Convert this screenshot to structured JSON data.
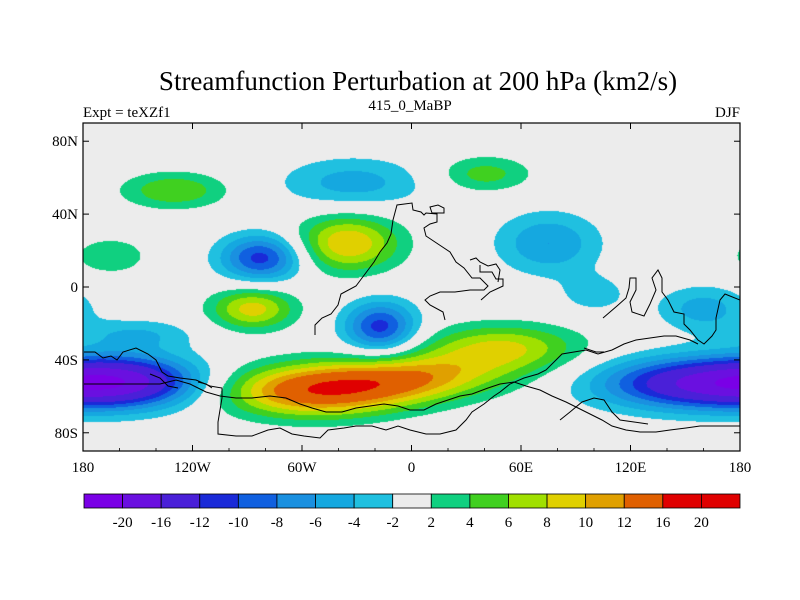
{
  "chart_data": {
    "type": "heatmap",
    "title": "Streamfunction Perturbation at 200 hPa (km2/s)",
    "left_subtitle": "Expt = teXZf1",
    "center_subtitle": "415_0_MaBP",
    "right_subtitle": "DJF",
    "xlim": [
      -180,
      180
    ],
    "ylim": [
      -90,
      90
    ],
    "x_ticks": [
      {
        "value": -180,
        "label": "180"
      },
      {
        "value": -120,
        "label": "120W"
      },
      {
        "value": -60,
        "label": "60W"
      },
      {
        "value": 0,
        "label": "0"
      },
      {
        "value": 60,
        "label": "60E"
      },
      {
        "value": 120,
        "label": "120E"
      },
      {
        "value": 180,
        "label": "180"
      }
    ],
    "y_ticks": [
      {
        "value": 80,
        "label": "80N"
      },
      {
        "value": 40,
        "label": "40N"
      },
      {
        "value": 0,
        "label": "0"
      },
      {
        "value": -40,
        "label": "40S"
      },
      {
        "value": -80,
        "label": "80S"
      }
    ],
    "levels": [
      -20,
      -16,
      -12,
      -10,
      -8,
      -6,
      -4,
      -2,
      2,
      4,
      6,
      8,
      10,
      12,
      16,
      20
    ],
    "colors": [
      "#7a00e6",
      "#6a10e0",
      "#4a20d8",
      "#1a2ad8",
      "#1060e0",
      "#1a90e0",
      "#15a8e0",
      "#20c0e0",
      "#ececec",
      "#10d080",
      "#40d020",
      "#a0e000",
      "#e0d000",
      "#e0a000",
      "#e06000",
      "#e00000",
      "#e00000"
    ],
    "colorbar_labels": [
      {
        "value": -20,
        "label": "-20"
      },
      {
        "value": -16,
        "label": "-16"
      },
      {
        "value": -12,
        "label": "-12"
      },
      {
        "value": -10,
        "label": "-10"
      },
      {
        "value": -8,
        "label": "-8"
      },
      {
        "value": -6,
        "label": "-6"
      },
      {
        "value": -4,
        "label": "-4"
      },
      {
        "value": -2,
        "label": "-2"
      },
      {
        "value": 2,
        "label": "2"
      },
      {
        "value": 4,
        "label": "4"
      },
      {
        "value": 6,
        "label": "6"
      },
      {
        "value": 8,
        "label": "8"
      },
      {
        "value": 10,
        "label": "10"
      },
      {
        "value": 12,
        "label": "12"
      },
      {
        "value": 16,
        "label": "16"
      },
      {
        "value": 20,
        "label": "20"
      }
    ],
    "field_centers": [
      {
        "lon": -55,
        "lat": -57,
        "amp": 14,
        "slon": 34,
        "slat": 10
      },
      {
        "lon": -10,
        "lat": -52,
        "amp": 7,
        "slon": 30,
        "slat": 9
      },
      {
        "lon": 50,
        "lat": -33,
        "amp": 8,
        "slon": 30,
        "slat": 9
      },
      {
        "lon": 20,
        "lat": -47,
        "amp": 5,
        "slon": 35,
        "slat": 9
      },
      {
        "lon": -35,
        "lat": 24,
        "amp": 10,
        "slon": 20,
        "slat": 11
      },
      {
        "lon": -87,
        "lat": -12,
        "amp": 9,
        "slon": 16,
        "slat": 8
      },
      {
        "lon": -130,
        "lat": 53,
        "amp": 6,
        "slon": 20,
        "slat": 7
      },
      {
        "lon": 40,
        "lat": 62,
        "amp": 5,
        "slon": 18,
        "slat": 7
      },
      {
        "lon": -165,
        "lat": 17,
        "amp": 4,
        "slon": 14,
        "slat": 7
      },
      {
        "lon": -157,
        "lat": -52,
        "amp": -15,
        "slon": 30,
        "slat": 10
      },
      {
        "lon": 152,
        "lat": -53,
        "amp": -14,
        "slon": 36,
        "slat": 10
      },
      {
        "lon": -82,
        "lat": 16,
        "amp": -11,
        "slon": 16,
        "slat": 9
      },
      {
        "lon": -17,
        "lat": -22,
        "amp": -11,
        "slon": 14,
        "slat": 10
      },
      {
        "lon": 75,
        "lat": 24,
        "amp": -6,
        "slon": 20,
        "slat": 12
      },
      {
        "lon": -32,
        "lat": 57,
        "amp": -5,
        "slon": 28,
        "slat": 10
      },
      {
        "lon": 160,
        "lat": -12,
        "amp": -5,
        "slon": 18,
        "slat": 9
      },
      {
        "lon": -150,
        "lat": -26,
        "amp": -4,
        "slon": 22,
        "slat": 6
      },
      {
        "lon": 100,
        "lat": -4,
        "amp": -3,
        "slon": 14,
        "slat": 8
      }
    ]
  }
}
